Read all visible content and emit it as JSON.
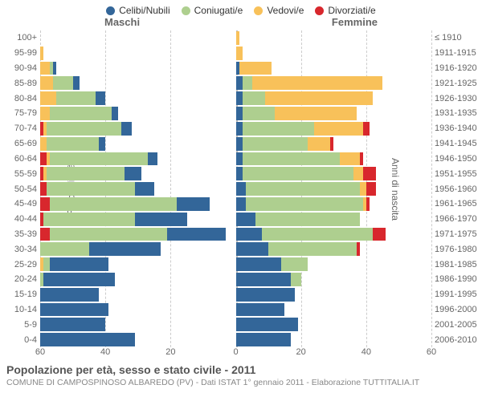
{
  "chart": {
    "type": "population_pyramid",
    "axis_max": 60,
    "x_ticks": [
      60,
      40,
      20,
      0,
      20,
      40,
      60
    ],
    "grid_color": "#cccccc",
    "center_line_color": "#bbbbbb",
    "background_color": "#ffffff",
    "left_axis_title": "Fasce di età",
    "right_axis_title": "Anni di nascita",
    "male_heading": "Maschi",
    "female_heading": "Femmine",
    "legend": [
      {
        "label": "Celibi/Nubili",
        "color": "#336699"
      },
      {
        "label": "Coniugati/e",
        "color": "#aecf8f"
      },
      {
        "label": "Vedovi/e",
        "color": "#f8c15a"
      },
      {
        "label": "Divorziati/e",
        "color": "#d8272d"
      }
    ],
    "colors": {
      "celibi": "#336699",
      "coniugati": "#aecf8f",
      "vedovi": "#f8c15a",
      "divorziati": "#d8272d"
    },
    "rows": [
      {
        "age": "100+",
        "year": "≤ 1910",
        "m": {
          "cel": 0,
          "con": 0,
          "ved": 0,
          "div": 0
        },
        "f": {
          "cel": 0,
          "con": 0,
          "ved": 1,
          "div": 0
        }
      },
      {
        "age": "95-99",
        "year": "1911-1915",
        "m": {
          "cel": 0,
          "con": 0,
          "ved": 1,
          "div": 0
        },
        "f": {
          "cel": 0,
          "con": 0,
          "ved": 2,
          "div": 0
        }
      },
      {
        "age": "90-94",
        "year": "1916-1920",
        "m": {
          "cel": 1,
          "con": 1,
          "ved": 3,
          "div": 0
        },
        "f": {
          "cel": 1,
          "con": 0,
          "ved": 10,
          "div": 0
        }
      },
      {
        "age": "85-89",
        "year": "1921-1925",
        "m": {
          "cel": 2,
          "con": 6,
          "ved": 4,
          "div": 0
        },
        "f": {
          "cel": 2,
          "con": 3,
          "ved": 40,
          "div": 0
        }
      },
      {
        "age": "80-84",
        "year": "1926-1930",
        "m": {
          "cel": 3,
          "con": 12,
          "ved": 5,
          "div": 0
        },
        "f": {
          "cel": 2,
          "con": 7,
          "ved": 33,
          "div": 0
        }
      },
      {
        "age": "75-79",
        "year": "1931-1935",
        "m": {
          "cel": 2,
          "con": 19,
          "ved": 3,
          "div": 0
        },
        "f": {
          "cel": 2,
          "con": 10,
          "ved": 25,
          "div": 0
        }
      },
      {
        "age": "70-74",
        "year": "1936-1940",
        "m": {
          "cel": 3,
          "con": 23,
          "ved": 1,
          "div": 1
        },
        "f": {
          "cel": 2,
          "con": 22,
          "ved": 15,
          "div": 2
        }
      },
      {
        "age": "65-69",
        "year": "1941-1945",
        "m": {
          "cel": 2,
          "con": 16,
          "ved": 2,
          "div": 0
        },
        "f": {
          "cel": 2,
          "con": 20,
          "ved": 7,
          "div": 1
        }
      },
      {
        "age": "60-64",
        "year": "1946-1950",
        "m": {
          "cel": 3,
          "con": 30,
          "ved": 1,
          "div": 2
        },
        "f": {
          "cel": 2,
          "con": 30,
          "ved": 6,
          "div": 1
        }
      },
      {
        "age": "55-59",
        "year": "1951-1955",
        "m": {
          "cel": 5,
          "con": 24,
          "ved": 1,
          "div": 1
        },
        "f": {
          "cel": 2,
          "con": 34,
          "ved": 3,
          "div": 4
        }
      },
      {
        "age": "50-54",
        "year": "1956-1960",
        "m": {
          "cel": 6,
          "con": 27,
          "ved": 0,
          "div": 2
        },
        "f": {
          "cel": 3,
          "con": 35,
          "ved": 2,
          "div": 3
        }
      },
      {
        "age": "45-49",
        "year": "1961-1965",
        "m": {
          "cel": 10,
          "con": 39,
          "ved": 0,
          "div": 3
        },
        "f": {
          "cel": 3,
          "con": 36,
          "ved": 1,
          "div": 1
        }
      },
      {
        "age": "40-44",
        "year": "1966-1970",
        "m": {
          "cel": 16,
          "con": 28,
          "ved": 0,
          "div": 1
        },
        "f": {
          "cel": 6,
          "con": 32,
          "ved": 0,
          "div": 0
        }
      },
      {
        "age": "35-39",
        "year": "1971-1975",
        "m": {
          "cel": 18,
          "con": 36,
          "ved": 0,
          "div": 3
        },
        "f": {
          "cel": 8,
          "con": 34,
          "ved": 0,
          "div": 4
        }
      },
      {
        "age": "30-34",
        "year": "1976-1980",
        "m": {
          "cel": 22,
          "con": 15,
          "ved": 0,
          "div": 0
        },
        "f": {
          "cel": 10,
          "con": 27,
          "ved": 0,
          "div": 1
        }
      },
      {
        "age": "25-29",
        "year": "1981-1985",
        "m": {
          "cel": 18,
          "con": 2,
          "ved": 1,
          "div": 0
        },
        "f": {
          "cel": 14,
          "con": 8,
          "ved": 0,
          "div": 0
        }
      },
      {
        "age": "20-24",
        "year": "1986-1990",
        "m": {
          "cel": 22,
          "con": 1,
          "ved": 0,
          "div": 0
        },
        "f": {
          "cel": 17,
          "con": 3,
          "ved": 0,
          "div": 0
        }
      },
      {
        "age": "15-19",
        "year": "1991-1995",
        "m": {
          "cel": 18,
          "con": 0,
          "ved": 0,
          "div": 0
        },
        "f": {
          "cel": 18,
          "con": 0,
          "ved": 0,
          "div": 0
        }
      },
      {
        "age": "10-14",
        "year": "1996-2000",
        "m": {
          "cel": 21,
          "con": 0,
          "ved": 0,
          "div": 0
        },
        "f": {
          "cel": 15,
          "con": 0,
          "ved": 0,
          "div": 0
        }
      },
      {
        "age": "5-9",
        "year": "2001-2005",
        "m": {
          "cel": 20,
          "con": 0,
          "ved": 0,
          "div": 0
        },
        "f": {
          "cel": 19,
          "con": 0,
          "ved": 0,
          "div": 0
        }
      },
      {
        "age": "0-4",
        "year": "2006-2010",
        "m": {
          "cel": 29,
          "con": 0,
          "ved": 0,
          "div": 0
        },
        "f": {
          "cel": 17,
          "con": 0,
          "ved": 0,
          "div": 0
        }
      }
    ],
    "title": "Popolazione per età, sesso e stato civile - 2011",
    "subtitle": "COMUNE DI CAMPOSPINOSO ALBAREDO (PV) - Dati ISTAT 1° gennaio 2011 - Elaborazione TUTTITALIA.IT",
    "font": {
      "label_size": 11,
      "title_size": 14,
      "subtitle_size": 10.5,
      "legend_size": 12
    }
  }
}
